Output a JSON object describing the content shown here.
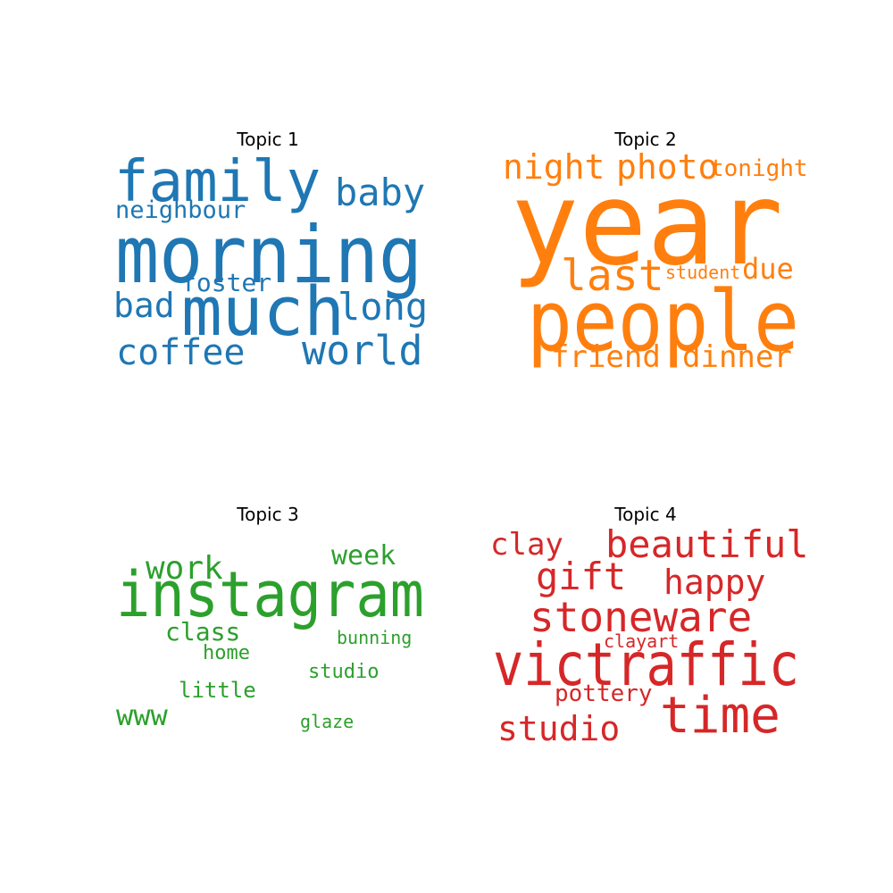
{
  "chart_data": [
    {
      "type": "wordcloud",
      "title": "Topic 1",
      "color": "#1f77b4",
      "words": [
        {
          "text": "morning",
          "weight": 1.0
        },
        {
          "text": "much",
          "weight": 0.92
        },
        {
          "text": "family",
          "weight": 0.84
        },
        {
          "text": "world",
          "weight": 0.62
        },
        {
          "text": "baby",
          "weight": 0.58
        },
        {
          "text": "long",
          "weight": 0.58
        },
        {
          "text": "coffee",
          "weight": 0.56
        },
        {
          "text": "bad",
          "weight": 0.52
        },
        {
          "text": "foster",
          "weight": 0.42
        },
        {
          "text": "neighbour",
          "weight": 0.4
        }
      ]
    },
    {
      "type": "wordcloud",
      "title": "Topic 2",
      "color": "#ff7f0e",
      "words": [
        {
          "text": "year",
          "weight": 1.0
        },
        {
          "text": "people",
          "weight": 0.82
        },
        {
          "text": "last",
          "weight": 0.5
        },
        {
          "text": "night",
          "weight": 0.4
        },
        {
          "text": "photo",
          "weight": 0.4
        },
        {
          "text": "friend",
          "weight": 0.36
        },
        {
          "text": "dinner",
          "weight": 0.36
        },
        {
          "text": "due",
          "weight": 0.34
        },
        {
          "text": "tonight",
          "weight": 0.28
        },
        {
          "text": "student",
          "weight": 0.24
        }
      ]
    },
    {
      "type": "wordcloud",
      "title": "Topic 3",
      "color": "#2ca02c",
      "words": [
        {
          "text": "instagram",
          "weight": 1.0
        },
        {
          "text": "work",
          "weight": 0.55
        },
        {
          "text": "www",
          "weight": 0.5
        },
        {
          "text": "week",
          "weight": 0.46
        },
        {
          "text": "class",
          "weight": 0.43
        },
        {
          "text": "little",
          "weight": 0.38
        },
        {
          "text": "home",
          "weight": 0.36
        },
        {
          "text": "studio",
          "weight": 0.36
        },
        {
          "text": "bunning",
          "weight": 0.34
        },
        {
          "text": "glaze",
          "weight": 0.34
        }
      ]
    },
    {
      "type": "wordcloud",
      "title": "Topic 4",
      "color": "#d62728",
      "words": [
        {
          "text": "victraffic",
          "weight": 1.0
        },
        {
          "text": "time",
          "weight": 0.84
        },
        {
          "text": "stoneware",
          "weight": 0.72
        },
        {
          "text": "beautiful",
          "weight": 0.66
        },
        {
          "text": "gift",
          "weight": 0.66
        },
        {
          "text": "studio",
          "weight": 0.6
        },
        {
          "text": "happy",
          "weight": 0.6
        },
        {
          "text": "clay",
          "weight": 0.56
        },
        {
          "text": "pottery",
          "weight": 0.44
        },
        {
          "text": "clayart",
          "weight": 0.36
        }
      ]
    }
  ]
}
